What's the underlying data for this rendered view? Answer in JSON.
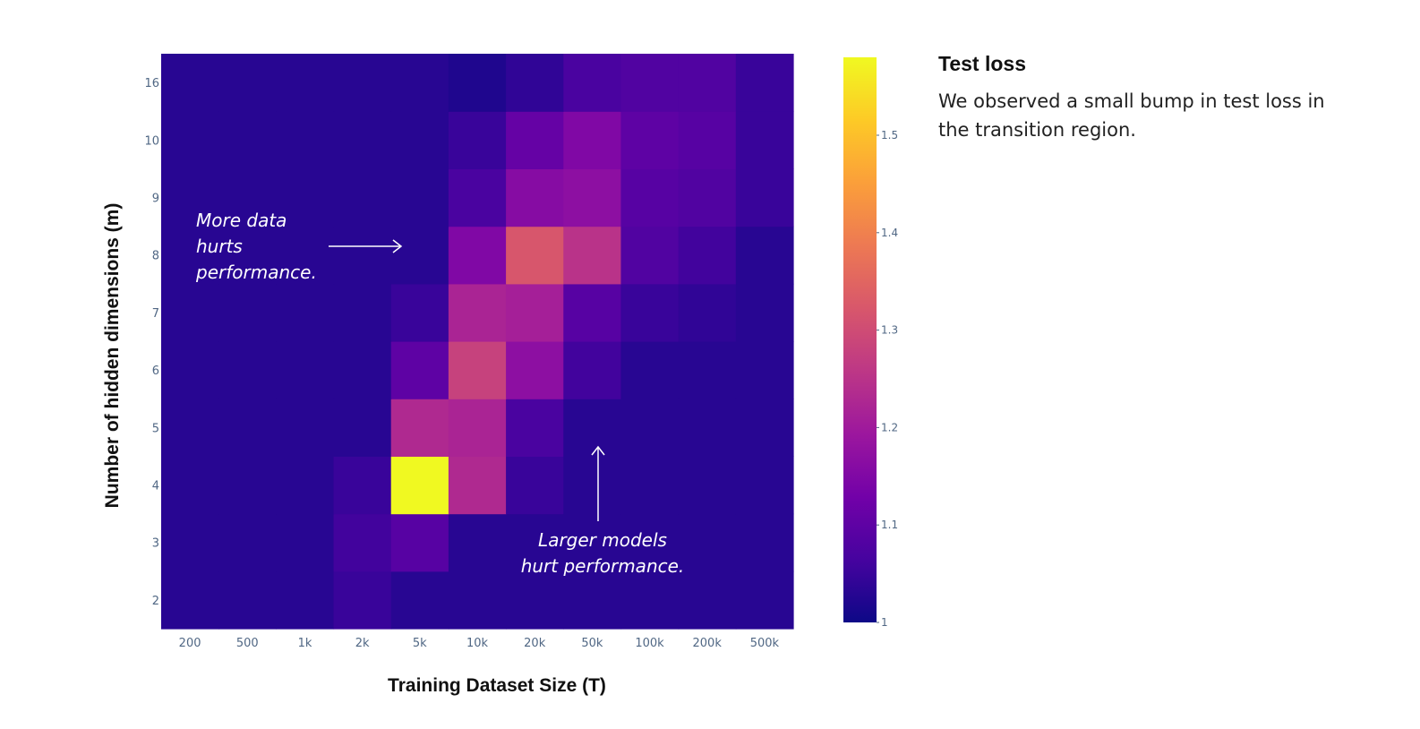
{
  "colors": {
    "colorscale": [
      "#0d0887",
      "#46039f",
      "#7201a8",
      "#9c179e",
      "#bd3786",
      "#d8576b",
      "#ed7953",
      "#fb9f3a",
      "#fdca26",
      "#f0f921"
    ],
    "annotation": "#ffffff"
  },
  "side": {
    "title": "Test loss",
    "description": "We observed a small bump in test loss in the transition region."
  },
  "chart_data": {
    "type": "heatmap",
    "xlabel": "Training Dataset Size (T)",
    "ylabel": "Number of hidden dimensions (m)",
    "x": [
      "200",
      "500",
      "1k",
      "2k",
      "5k",
      "10k",
      "20k",
      "50k",
      "100k",
      "200k",
      "500k"
    ],
    "y": [
      "2",
      "3",
      "4",
      "5",
      "6",
      "7",
      "8",
      "9",
      "10",
      "16"
    ],
    "z": [
      [
        1.03,
        1.03,
        1.03,
        1.05,
        1.03,
        1.03,
        1.03,
        1.03,
        1.03,
        1.03,
        1.03
      ],
      [
        1.03,
        1.03,
        1.03,
        1.06,
        1.09,
        1.03,
        1.03,
        1.03,
        1.03,
        1.03,
        1.03
      ],
      [
        1.03,
        1.03,
        1.03,
        1.05,
        1.58,
        1.23,
        1.05,
        1.03,
        1.03,
        1.03,
        1.03
      ],
      [
        1.03,
        1.03,
        1.03,
        1.03,
        1.23,
        1.22,
        1.07,
        1.03,
        1.03,
        1.03,
        1.03
      ],
      [
        1.03,
        1.03,
        1.03,
        1.03,
        1.1,
        1.28,
        1.17,
        1.06,
        1.03,
        1.03,
        1.03
      ],
      [
        1.03,
        1.03,
        1.03,
        1.03,
        1.05,
        1.22,
        1.21,
        1.09,
        1.05,
        1.04,
        1.03
      ],
      [
        1.03,
        1.03,
        1.03,
        1.03,
        1.03,
        1.15,
        1.32,
        1.25,
        1.08,
        1.06,
        1.03
      ],
      [
        1.03,
        1.03,
        1.03,
        1.03,
        1.03,
        1.07,
        1.16,
        1.17,
        1.09,
        1.08,
        1.05
      ],
      [
        1.03,
        1.03,
        1.03,
        1.03,
        1.03,
        1.05,
        1.11,
        1.15,
        1.1,
        1.09,
        1.05
      ],
      [
        1.03,
        1.03,
        1.03,
        1.03,
        1.03,
        1.02,
        1.04,
        1.07,
        1.08,
        1.08,
        1.05
      ]
    ],
    "zmin": 1.0,
    "zmax": 1.58,
    "colorbar": {
      "ticks": [
        1,
        1.1,
        1.2,
        1.3,
        1.4,
        1.5
      ],
      "ticklabels": [
        "1",
        "1.1",
        "1.2",
        "1.3",
        "1.4",
        "1.5"
      ]
    },
    "annotations": [
      {
        "lines": [
          "More data",
          "hurts",
          "performance."
        ],
        "arrow": "right"
      },
      {
        "lines": [
          "Larger models",
          "hurt performance."
        ],
        "arrow": "up"
      }
    ]
  }
}
